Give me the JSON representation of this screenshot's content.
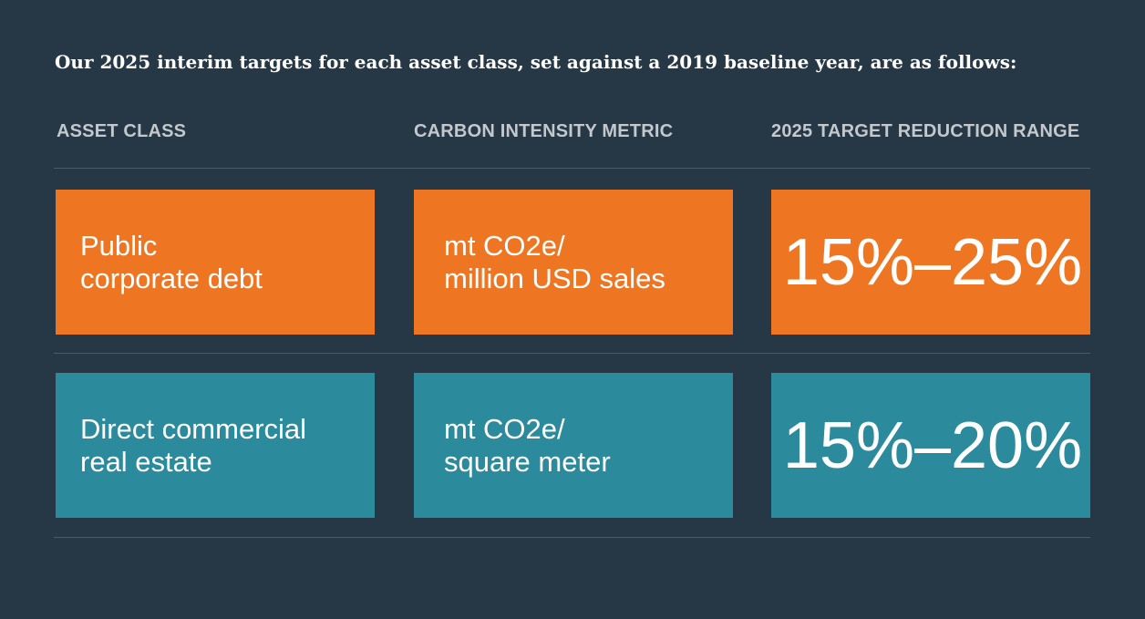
{
  "intro": "Our 2025 interim targets for each asset class, set against a 2019 baseline year, are as follows:",
  "headers": {
    "asset_class": "ASSET CLASS",
    "metric": "CARBON INTENSITY METRIC",
    "range": "2025 TARGET REDUCTION RANGE"
  },
  "rows": [
    {
      "asset_line1": "Public",
      "asset_line2": "corporate debt",
      "metric_line1": "mt CO2e/",
      "metric_line2": "million USD sales",
      "range": "15%–25%",
      "color": "#ee7622"
    },
    {
      "asset_line1": "Direct commercial",
      "asset_line2": "real estate",
      "metric_line1": "mt CO2e/",
      "metric_line2": "square meter",
      "range": "15%–20%",
      "color": "#2b8a9b"
    }
  ],
  "colors": {
    "background": "#263746",
    "orange": "#ee7622",
    "teal": "#2b8a9b",
    "header_text": "#c3c8cd"
  }
}
